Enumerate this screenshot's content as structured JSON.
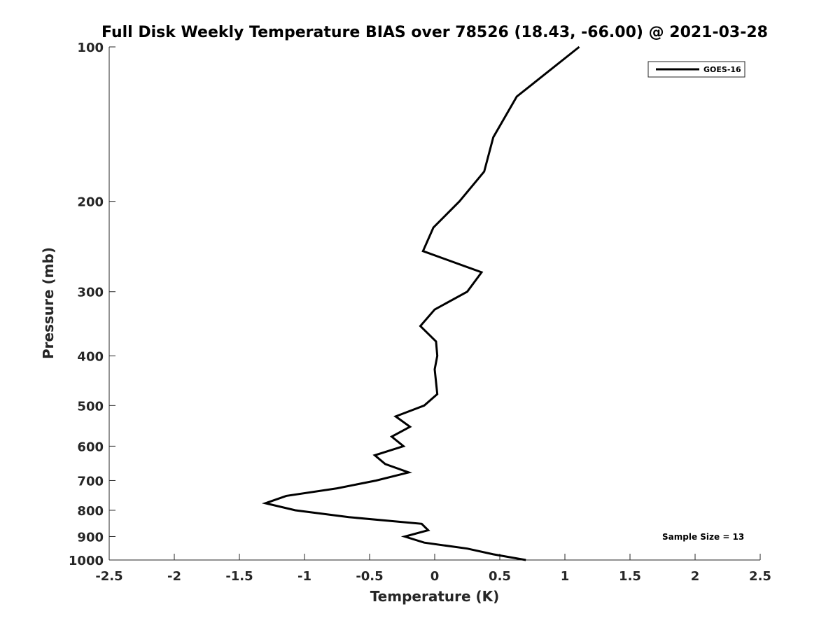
{
  "chart_data": {
    "type": "line",
    "title": "Full Disk Weekly Temperature BIAS over 78526 (18.43, -66.00) @ 2021-03-28",
    "xlabel": "Temperature (K)",
    "ylabel": "Pressure (mb)",
    "xlim": [
      -2.5,
      2.5
    ],
    "ylim": [
      100,
      1000
    ],
    "y_scale": "log",
    "y_reversed": true,
    "xticks": [
      -2.5,
      -2,
      -1.5,
      -1,
      -0.5,
      0,
      0.5,
      1,
      1.5,
      2,
      2.5
    ],
    "xtick_labels": [
      "-2.5",
      "-2",
      "-1.5",
      "-1",
      "-0.5",
      "0",
      "0.5",
      "1",
      "1.5",
      "2",
      "2.5"
    ],
    "yticks": [
      100,
      200,
      300,
      400,
      500,
      600,
      700,
      800,
      900,
      1000
    ],
    "ytick_labels": [
      "100",
      "200",
      "300",
      "400",
      "500",
      "600",
      "700",
      "800",
      "900",
      "1000"
    ],
    "grid": false,
    "legend": {
      "position": "top-right",
      "entries": [
        "GOES-16"
      ]
    },
    "annotation": "Sample Size = 13",
    "series": [
      {
        "name": "GOES-16",
        "color": "#000000",
        "points": [
          {
            "t": 1.11,
            "p": 100
          },
          {
            "t": 0.63,
            "p": 125
          },
          {
            "t": 0.45,
            "p": 150
          },
          {
            "t": 0.38,
            "p": 175
          },
          {
            "t": 0.19,
            "p": 200
          },
          {
            "t": -0.01,
            "p": 225
          },
          {
            "t": -0.09,
            "p": 250
          },
          {
            "t": 0.36,
            "p": 275
          },
          {
            "t": 0.25,
            "p": 300
          },
          {
            "t": 0.0,
            "p": 325
          },
          {
            "t": -0.11,
            "p": 350
          },
          {
            "t": 0.01,
            "p": 375
          },
          {
            "t": 0.02,
            "p": 400
          },
          {
            "t": 0.0,
            "p": 425
          },
          {
            "t": 0.01,
            "p": 450
          },
          {
            "t": 0.02,
            "p": 475
          },
          {
            "t": -0.08,
            "p": 500
          },
          {
            "t": -0.3,
            "p": 525
          },
          {
            "t": -0.19,
            "p": 550
          },
          {
            "t": -0.33,
            "p": 575
          },
          {
            "t": -0.24,
            "p": 600
          },
          {
            "t": -0.46,
            "p": 625
          },
          {
            "t": -0.38,
            "p": 650
          },
          {
            "t": -0.2,
            "p": 675
          },
          {
            "t": -0.45,
            "p": 700
          },
          {
            "t": -0.75,
            "p": 725
          },
          {
            "t": -1.14,
            "p": 750
          },
          {
            "t": -1.3,
            "p": 775
          },
          {
            "t": -1.07,
            "p": 800
          },
          {
            "t": -0.66,
            "p": 825
          },
          {
            "t": -0.1,
            "p": 850
          },
          {
            "t": -0.05,
            "p": 875
          },
          {
            "t": -0.23,
            "p": 900
          },
          {
            "t": -0.08,
            "p": 925
          },
          {
            "t": 0.25,
            "p": 950
          },
          {
            "t": 0.45,
            "p": 975
          },
          {
            "t": 0.7,
            "p": 1000
          }
        ]
      }
    ]
  }
}
